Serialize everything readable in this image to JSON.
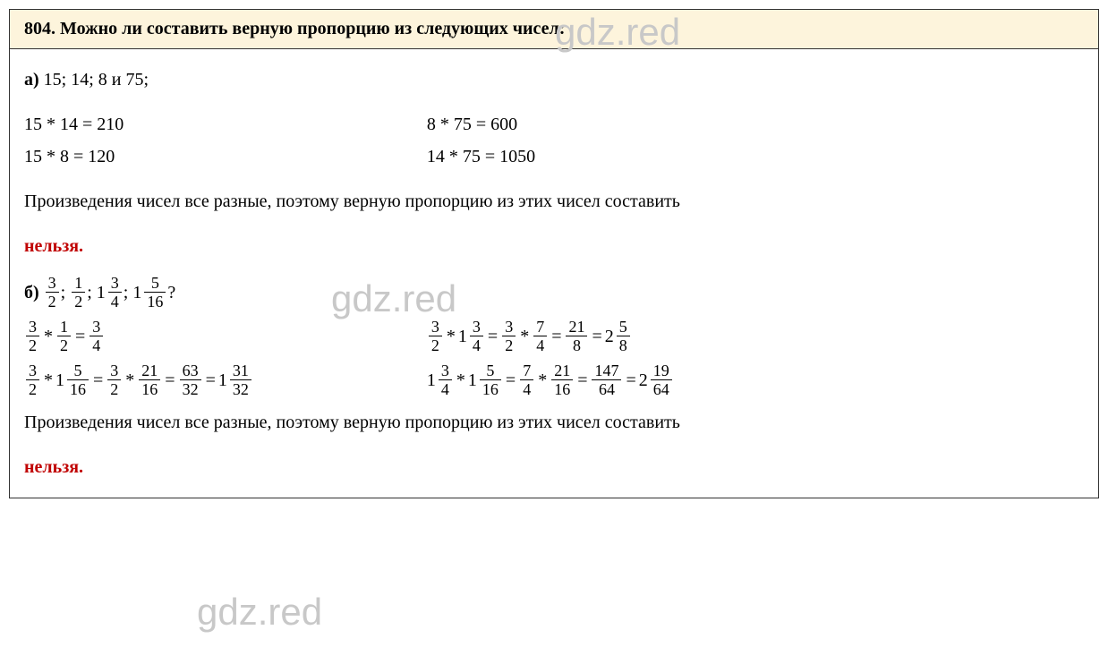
{
  "header": {
    "problem_number": "804.",
    "problem_text": "Можно ли составить верную пропорцию из следующих чисел:"
  },
  "part_a": {
    "label": "а)",
    "numbers": "15; 14; 8 и 75;",
    "eq1_left": "15 * 14 = 210",
    "eq1_right": "8 * 75 = 600",
    "eq2_left": "15 * 8 = 120",
    "eq2_right": "14 * 75 = 1050",
    "conclusion_text": "Произведения чисел  все разные, поэтому верную пропорцию из этих чисел составить",
    "conclusion_red": "нельзя."
  },
  "part_b": {
    "label": "б)",
    "f1": {
      "num": "3",
      "den": "2"
    },
    "f2": {
      "num": "1",
      "den": "2"
    },
    "m3": {
      "whole": "1",
      "num": "3",
      "den": "4"
    },
    "m4": {
      "whole": "1",
      "num": "5",
      "den": "16"
    },
    "question_mark": "?",
    "row1": {
      "left": {
        "a": {
          "num": "3",
          "den": "2"
        },
        "b": {
          "num": "1",
          "den": "2"
        },
        "result": {
          "num": "3",
          "den": "4"
        }
      },
      "right": {
        "a": {
          "num": "3",
          "den": "2"
        },
        "b": {
          "whole": "1",
          "num": "3",
          "den": "4"
        },
        "step1_a": {
          "num": "3",
          "den": "2"
        },
        "step1_b": {
          "num": "7",
          "den": "4"
        },
        "step2": {
          "num": "21",
          "den": "8"
        },
        "result": {
          "whole": "2",
          "num": "5",
          "den": "8"
        }
      }
    },
    "row2": {
      "left": {
        "a": {
          "num": "3",
          "den": "2"
        },
        "b": {
          "whole": "1",
          "num": "5",
          "den": "16"
        },
        "step1_a": {
          "num": "3",
          "den": "2"
        },
        "step1_b": {
          "num": "21",
          "den": "16"
        },
        "step2": {
          "num": "63",
          "den": "32"
        },
        "result": {
          "whole": "1",
          "num": "31",
          "den": "32"
        }
      },
      "right": {
        "a": {
          "whole": "1",
          "num": "3",
          "den": "4"
        },
        "b": {
          "whole": "1",
          "num": "5",
          "den": "16"
        },
        "step1_a": {
          "num": "7",
          "den": "4"
        },
        "step1_b": {
          "num": "21",
          "den": "16"
        },
        "step2": {
          "num": "147",
          "den": "64"
        },
        "result": {
          "whole": "2",
          "num": "19",
          "den": "64"
        }
      }
    },
    "conclusion_text": "Произведения чисел  все разные, поэтому верную пропорцию из этих чисел составить",
    "conclusion_red": "нельзя."
  },
  "watermark": "gdz.red"
}
